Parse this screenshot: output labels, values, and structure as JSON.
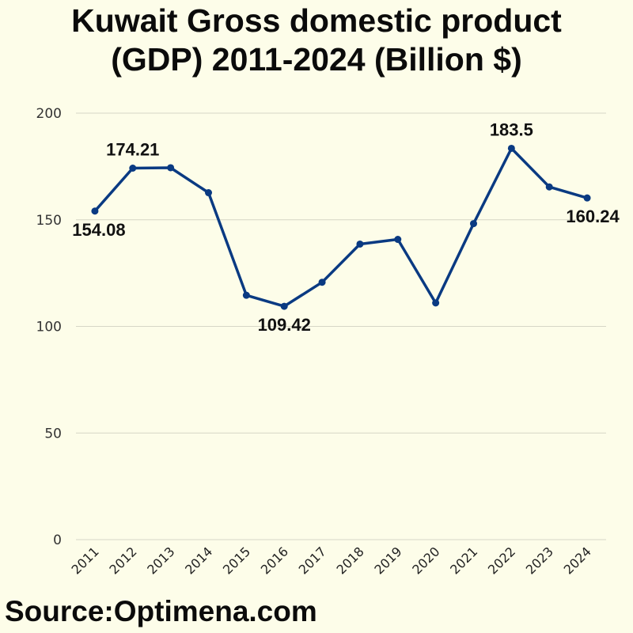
{
  "title_line1": "Kuwait Gross domestic product",
  "title_line2": "(GDP) 2011-2024 (Billion $)",
  "source": "Source:Optimena.com",
  "colors": {
    "line": "#0a3a82",
    "background": "#fdfde9",
    "grid": "#d6d6c6"
  },
  "chart_data": {
    "type": "line",
    "title": "Kuwait Gross domestic product (GDP) 2011-2024 (Billion $)",
    "xlabel": "",
    "ylabel": "",
    "x": [
      "2011",
      "2012",
      "2013",
      "2014",
      "2015",
      "2016",
      "2017",
      "2018",
      "2019",
      "2020",
      "2021",
      "2022",
      "2023",
      "2024"
    ],
    "series": [
      {
        "values": [
          154.08,
          174.21,
          174.4,
          162.7,
          114.6,
          109.42,
          120.7,
          138.6,
          140.8,
          111.0,
          148.2,
          183.5,
          165.4,
          160.24
        ]
      }
    ],
    "data_labels": [
      {
        "index": 0,
        "text": "154.08",
        "position": "below"
      },
      {
        "index": 1,
        "text": "174.21",
        "position": "above"
      },
      {
        "index": 5,
        "text": "109.42",
        "position": "below"
      },
      {
        "index": 11,
        "text": "183.5",
        "position": "above"
      },
      {
        "index": 13,
        "text": "160.24",
        "position": "below"
      }
    ],
    "yticks": [
      "0",
      "50",
      "100",
      "150",
      "200"
    ],
    "ylim": [
      0,
      200
    ],
    "grid": true,
    "legend": "none"
  }
}
